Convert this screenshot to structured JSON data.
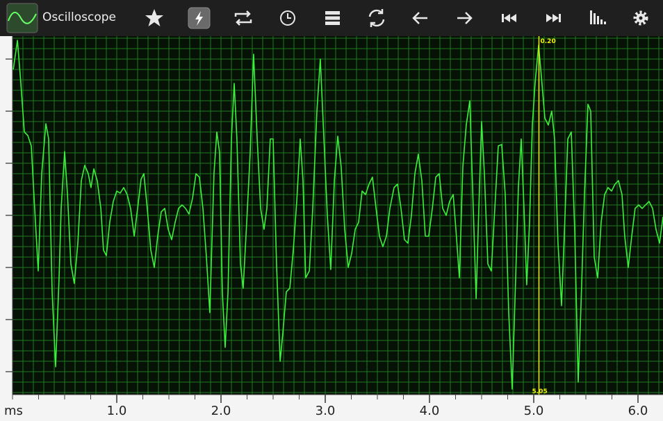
{
  "app": {
    "title": "Oscilloscope"
  },
  "chart_data": {
    "type": "line",
    "x_label": "ms",
    "xlim": [
      0,
      6.24
    ],
    "ylim": [
      -258,
      258
    ],
    "xticks": [
      {
        "value": 1,
        "label": "1.0"
      },
      {
        "value": 2,
        "label": "2.0"
      },
      {
        "value": 3,
        "label": "3.0"
      },
      {
        "value": 4,
        "label": "4.0"
      },
      {
        "value": 5,
        "label": "5.0"
      },
      {
        "value": 6,
        "label": "6.0"
      }
    ],
    "grid": true,
    "cursor": {
      "x": 5.05,
      "value_label": "0.20",
      "color": "#f2f200"
    },
    "series": [
      {
        "color": "#3cf03c",
        "x": [
          0.007,
          0.047,
          0.08,
          0.113,
          0.147,
          0.18,
          0.213,
          0.247,
          0.28,
          0.32,
          0.347,
          0.38,
          0.413,
          0.447,
          0.467,
          0.5,
          0.527,
          0.56,
          0.593,
          0.627,
          0.66,
          0.693,
          0.727,
          0.753,
          0.78,
          0.813,
          0.847,
          0.873,
          0.9,
          0.933,
          0.967,
          1.0,
          1.033,
          1.067,
          1.1,
          1.133,
          1.167,
          1.2,
          1.233,
          1.26,
          1.293,
          1.327,
          1.36,
          1.393,
          1.427,
          1.46,
          1.493,
          1.527,
          1.56,
          1.593,
          1.627,
          1.66,
          1.693,
          1.727,
          1.76,
          1.793,
          1.827,
          1.86,
          1.893,
          1.933,
          1.96,
          1.987,
          2.013,
          2.04,
          2.067,
          2.1,
          2.127,
          2.153,
          2.187,
          2.213,
          2.247,
          2.28,
          2.313,
          2.347,
          2.38,
          2.413,
          2.44,
          2.473,
          2.5,
          2.533,
          2.567,
          2.593,
          2.627,
          2.66,
          2.693,
          2.727,
          2.76,
          2.787,
          2.813,
          2.847,
          2.88,
          2.92,
          2.953,
          2.987,
          3.02,
          3.053,
          3.087,
          3.12,
          3.153,
          3.187,
          3.22,
          3.253,
          3.287,
          3.32,
          3.353,
          3.387,
          3.42,
          3.453,
          3.487,
          3.52,
          3.553,
          3.587,
          3.62,
          3.66,
          3.693,
          3.727,
          3.76,
          3.793,
          3.827,
          3.86,
          3.893,
          3.927,
          3.96,
          3.993,
          4.027,
          4.06,
          4.093,
          4.127,
          4.16,
          4.193,
          4.227,
          4.253,
          4.287,
          4.32,
          4.353,
          4.387,
          4.42,
          4.447,
          4.473,
          4.5,
          4.527,
          4.56,
          4.593,
          4.627,
          4.66,
          4.693,
          4.727,
          4.76,
          4.793,
          4.827,
          4.853,
          4.88,
          4.907,
          4.933,
          4.96,
          4.987,
          5.013,
          5.047,
          5.073,
          5.107,
          5.14,
          5.173,
          5.2,
          5.233,
          5.267,
          5.293,
          5.327,
          5.36,
          5.393,
          5.427,
          5.453,
          5.487,
          5.52,
          5.547,
          5.58,
          5.613,
          5.647,
          5.68,
          5.713,
          5.747,
          5.78,
          5.813,
          5.847,
          5.873,
          5.907,
          5.94,
          5.973,
          6.007,
          6.04,
          6.073,
          6.107,
          6.14,
          6.173,
          6.207,
          6.24
        ],
        "values": [
          210,
          252,
          190,
          120,
          115,
          100,
          10,
          -80,
          60,
          132,
          110,
          -110,
          -218,
          -90,
          10,
          92,
          30,
          -70,
          -98,
          -40,
          50,
          72,
          60,
          40,
          67,
          50,
          10,
          -50,
          -58,
          -10,
          20,
          35,
          32,
          40,
          30,
          10,
          -30,
          10,
          52,
          60,
          10,
          -50,
          -75,
          -30,
          5,
          10,
          -20,
          -35,
          -10,
          10,
          15,
          10,
          2,
          25,
          60,
          55,
          10,
          -60,
          -140,
          60,
          120,
          90,
          -110,
          -190,
          -110,
          110,
          190,
          110,
          -70,
          -105,
          -10,
          90,
          232,
          110,
          10,
          -20,
          10,
          110,
          110,
          -70,
          -210,
          -170,
          -110,
          -105,
          -50,
          20,
          110,
          50,
          -90,
          -80,
          10,
          150,
          225,
          110,
          0,
          -78,
          50,
          114,
          70,
          -20,
          -75,
          -55,
          -20,
          -10,
          35,
          30,
          45,
          55,
          10,
          -30,
          -45,
          -30,
          10,
          40,
          45,
          10,
          -35,
          -40,
          0,
          60,
          88,
          50,
          -30,
          -30,
          10,
          55,
          60,
          10,
          0,
          20,
          30,
          -20,
          -90,
          70,
          130,
          165,
          10,
          -120,
          10,
          135,
          60,
          -70,
          -80,
          10,
          100,
          102,
          30,
          -140,
          -250,
          -90,
          40,
          110,
          10,
          -100,
          -10,
          130,
          190,
          245,
          200,
          140,
          130,
          150,
          110,
          -40,
          -130,
          -30,
          110,
          120,
          -20,
          -240,
          -130,
          30,
          160,
          150,
          -60,
          -90,
          -10,
          30,
          40,
          35,
          45,
          50,
          30,
          -30,
          -75,
          -30,
          10,
          15,
          10,
          15,
          20,
          10,
          -20,
          -40,
          -2
        ]
      }
    ]
  }
}
